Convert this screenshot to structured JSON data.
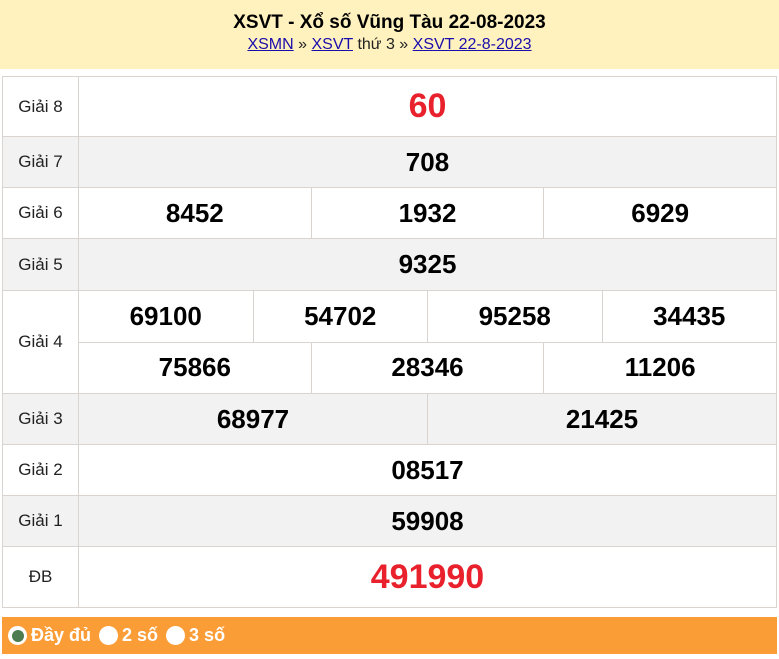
{
  "header": {
    "title": "XSVT - Xổ số Vũng Tàu 22-08-2023",
    "crumb1": "XSMN",
    "sep1": "»",
    "crumb2": "XSVT",
    "crumb2_suffix": "thứ 3",
    "sep2": "»",
    "crumb3": "XSVT 22-8-2023"
  },
  "rows": [
    {
      "label": "Giải 8",
      "values": [
        [
          "60"
        ]
      ],
      "highlight": true
    },
    {
      "label": "Giải 7",
      "values": [
        [
          "708"
        ]
      ]
    },
    {
      "label": "Giải 6",
      "values": [
        [
          "8452",
          "1932",
          "6929"
        ]
      ]
    },
    {
      "label": "Giải 5",
      "values": [
        [
          "9325"
        ]
      ]
    },
    {
      "label": "Giải 4",
      "values": [
        [
          "69100",
          "54702",
          "95258",
          "34435"
        ],
        [
          "75866",
          "28346",
          "11206"
        ]
      ]
    },
    {
      "label": "Giải 3",
      "values": [
        [
          "68977",
          "21425"
        ]
      ]
    },
    {
      "label": "Giải 2",
      "values": [
        [
          "08517"
        ]
      ]
    },
    {
      "label": "Giải 1",
      "values": [
        [
          "59908"
        ]
      ]
    },
    {
      "label": "ĐB",
      "values": [
        [
          "491990"
        ]
      ],
      "highlight": true
    }
  ],
  "footer": {
    "options": [
      {
        "label": "Đầy đủ",
        "selected": true
      },
      {
        "label": "2 số",
        "selected": false
      },
      {
        "label": "3 số",
        "selected": false
      }
    ]
  },
  "colors": {
    "header_bg": "#fff2bf",
    "footer_bg": "#fb9d36",
    "highlight": "#e8212c",
    "link": "#1a0dab"
  }
}
